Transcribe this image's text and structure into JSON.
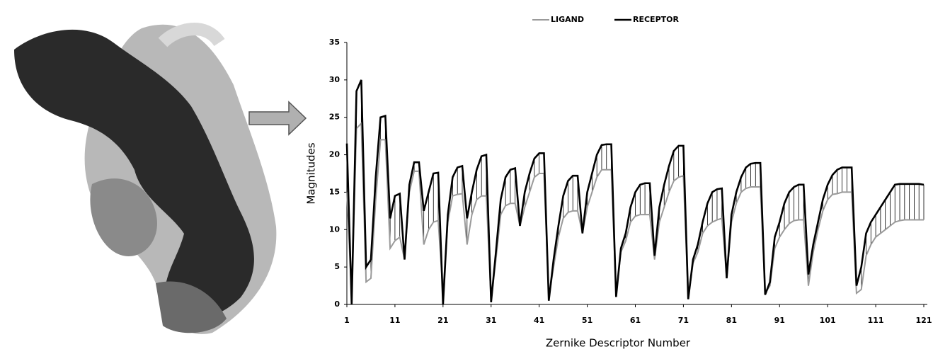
{
  "chart_data": {
    "type": "line",
    "legend": "top",
    "x_label": "Zernike Descriptor Number",
    "y_label": "Magnitudes",
    "xlim": [
      1,
      121
    ],
    "xticks": [
      1,
      11,
      21,
      31,
      41,
      51,
      61,
      71,
      81,
      91,
      101,
      111,
      121
    ],
    "ylim": [
      0,
      35
    ],
    "yticks": [
      0,
      5,
      10,
      15,
      20,
      25,
      30,
      35
    ],
    "series": [
      {
        "name": "LIGAND",
        "color": "#9a9a9a",
        "values": [
          15,
          1,
          23.5,
          24.2,
          3,
          3.5,
          14,
          22,
          22,
          7.5,
          8.5,
          9,
          6,
          15,
          17.8,
          17.8,
          8,
          10,
          11,
          11.2,
          1.5,
          11,
          14.5,
          14.7,
          14.8,
          8,
          12,
          14,
          14.5,
          14.5,
          0.5,
          6,
          12,
          13.2,
          13.5,
          13.5,
          10.5,
          13,
          15,
          17,
          17.5,
          17.5,
          0.8,
          5,
          9,
          11.5,
          12.3,
          12.5,
          12.5,
          9.5,
          13,
          15,
          17,
          18,
          18,
          18,
          1.2,
          7,
          8.5,
          11,
          11.8,
          12,
          12,
          12,
          6,
          11,
          13,
          15,
          16.5,
          17,
          17.2,
          0.8,
          5.5,
          7,
          9.5,
          10.5,
          11,
          11.3,
          11.5,
          3.5,
          11,
          13.5,
          15,
          15.5,
          15.7,
          15.7,
          15.7,
          1.5,
          2.5,
          7.5,
          9,
          10,
          10.8,
          11.2,
          11.3,
          11.3,
          2.5,
          7,
          10,
          12.5,
          14,
          14.7,
          14.8,
          15,
          15,
          15,
          1.5,
          2,
          6.5,
          8,
          9,
          9.5,
          10,
          10.5,
          11,
          11.2,
          11.3,
          11.3,
          11.3,
          11.3,
          11.3
        ]
      },
      {
        "name": "RECEPTOR",
        "color": "#000000",
        "values": [
          21.5,
          0,
          28.5,
          30,
          5,
          6,
          17,
          25,
          25.2,
          11.5,
          14.5,
          14.8,
          6,
          16,
          19,
          19,
          12.5,
          15,
          17.5,
          17.6,
          0,
          12,
          17,
          18.3,
          18.5,
          11.5,
          15,
          18,
          19.8,
          20,
          0.3,
          7,
          14,
          17,
          18,
          18.2,
          10.5,
          15,
          17.5,
          19.5,
          20.2,
          20.2,
          0.5,
          6,
          10.5,
          14.5,
          16.5,
          17.2,
          17.2,
          9.5,
          15,
          17.5,
          20,
          21.3,
          21.4,
          21.4,
          1,
          7.5,
          9.5,
          13,
          15,
          16,
          16.2,
          16.2,
          6.5,
          13,
          16,
          18.5,
          20.5,
          21.2,
          21.2,
          0.7,
          6,
          8,
          11,
          13.5,
          15,
          15.4,
          15.5,
          3.5,
          12,
          15,
          17,
          18.3,
          18.8,
          18.9,
          18.9,
          1.3,
          3,
          9,
          11,
          13.5,
          15,
          15.7,
          16,
          16,
          4,
          8,
          11,
          14,
          16,
          17.3,
          18,
          18.3,
          18.3,
          18.3,
          2.5,
          5,
          9.5,
          11,
          12,
          13,
          14,
          15,
          16,
          16.1,
          16.1,
          16.1,
          16.1,
          16.1,
          16
        ]
      }
    ]
  }
}
